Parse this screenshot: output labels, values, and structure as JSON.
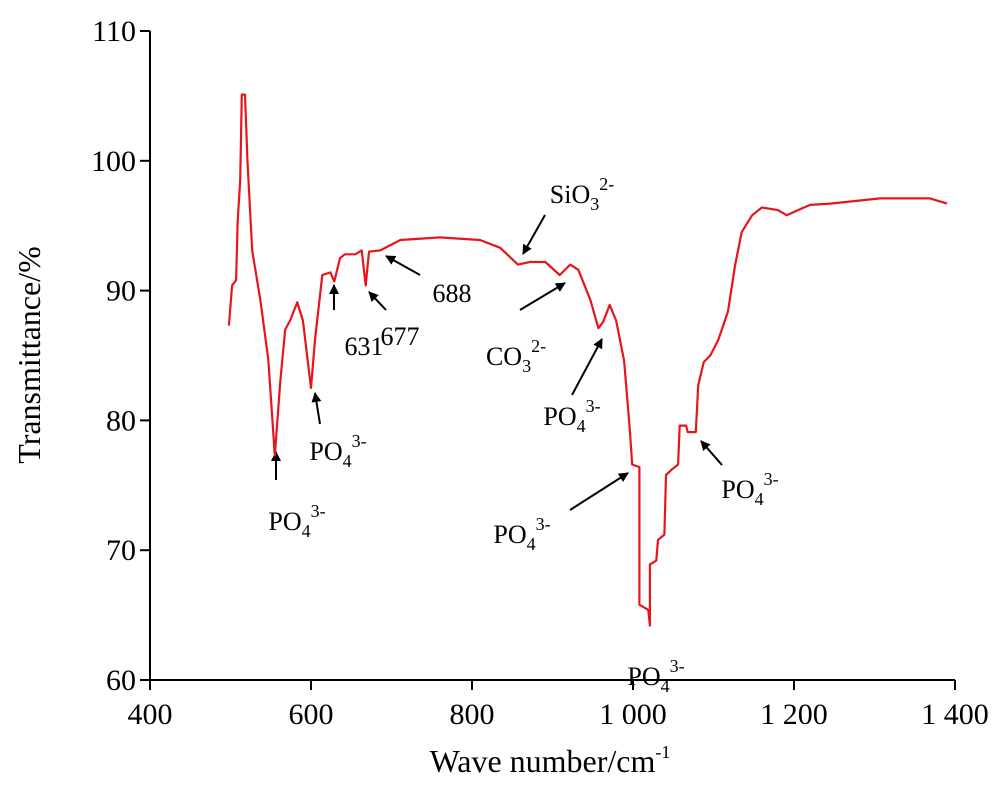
{
  "chart_data": {
    "type": "line",
    "y_label": "Transmittance/%",
    "x_label": {
      "text": "Wave number/cm",
      "sup": "-1"
    },
    "xlim": [
      400,
      1400
    ],
    "ylim": [
      60,
      110
    ],
    "xticks": [
      400,
      600,
      800,
      {
        "value": 1000,
        "label": "1 000"
      },
      {
        "value": 1200,
        "label": "1 200"
      },
      {
        "value": 1400,
        "label": "1 400"
      }
    ],
    "yticks": [
      60,
      70,
      80,
      90,
      100,
      110
    ],
    "x": [
      498,
      502,
      507,
      509,
      512,
      514,
      518,
      521,
      527,
      537,
      547,
      555,
      562,
      568,
      574,
      583,
      590,
      600,
      605,
      614,
      624,
      629,
      636,
      642,
      655,
      663,
      668,
      672,
      686,
      711,
      760,
      810,
      835,
      857,
      872,
      891,
      909,
      922,
      932,
      947,
      957,
      963,
      971,
      979,
      989,
      996,
      999,
      1008,
      1008,
      1019,
      1021,
      1021,
      1029,
      1031,
      1039,
      1041,
      1048,
      1056,
      1058,
      1066,
      1068,
      1078,
      1081,
      1088,
      1096,
      1106,
      1118,
      1127,
      1135,
      1148,
      1160,
      1180,
      1191,
      1205,
      1220,
      1245,
      1307,
      1369,
      1390
    ],
    "series": [
      {
        "color": "#e8141c",
        "values": [
          87.3,
          90.4,
          90.8,
          95.4,
          98.5,
          105.1,
          105.1,
          100.1,
          93.1,
          89.3,
          84.7,
          77.3,
          83.1,
          87.0,
          87.7,
          89.1,
          87.7,
          82.5,
          86.2,
          91.2,
          91.4,
          90.7,
          92.5,
          92.8,
          92.8,
          93.1,
          90.4,
          93.0,
          93.1,
          93.9,
          94.1,
          93.9,
          93.3,
          92.0,
          92.2,
          92.2,
          91.2,
          92.0,
          91.6,
          89.3,
          87.1,
          87.6,
          88.9,
          87.7,
          84.6,
          79.3,
          76.6,
          76.4,
          65.8,
          65.4,
          64.2,
          68.9,
          69.2,
          70.8,
          71.2,
          75.8,
          76.2,
          76.6,
          79.6,
          79.6,
          79.1,
          79.1,
          82.7,
          84.5,
          85.0,
          86.2,
          88.4,
          92.0,
          94.5,
          95.8,
          96.4,
          96.2,
          95.8,
          96.2,
          96.6,
          96.7,
          97.1,
          97.1,
          96.7
        ]
      }
    ],
    "annotations": [
      {
        "base": "PO",
        "sub": "4",
        "sup": "3-"
      },
      {
        "base": "PO",
        "sub": "4",
        "sup": "3-"
      },
      {
        "base": "631"
      },
      {
        "base": "677"
      },
      {
        "base": "688"
      },
      {
        "base": "SiO",
        "sub": "3",
        "sup": "2-"
      },
      {
        "base": "CO",
        "sub": "3",
        "sup": "2-"
      },
      {
        "base": "PO",
        "sub": "4",
        "sup": "3-"
      },
      {
        "base": "PO",
        "sub": "4",
        "sup": "3-"
      },
      {
        "base": "PO",
        "sub": "4",
        "sup": "3-"
      },
      {
        "base": "PO",
        "sub": "4",
        "sup": "3-"
      }
    ]
  }
}
